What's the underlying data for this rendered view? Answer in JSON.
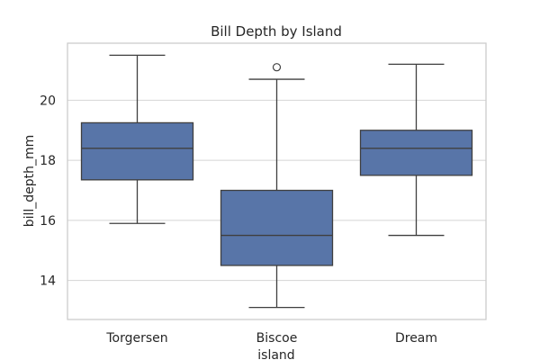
{
  "chart_data": {
    "type": "box",
    "title": "Bill Depth by Island",
    "xlabel": "island",
    "ylabel": "bill_depth_mm",
    "categories": [
      "Torgersen",
      "Biscoe",
      "Dream"
    ],
    "ylim": [
      12.7,
      21.9
    ],
    "yticks": [
      14,
      16,
      18,
      20
    ],
    "grid": true,
    "box_color": "#5875A8",
    "line_color": "#3f3f3f",
    "boxes": [
      {
        "category": "Torgersen",
        "whisker_low": 15.9,
        "q1": 17.35,
        "median": 18.4,
        "q3": 19.25,
        "whisker_high": 21.5,
        "outliers": []
      },
      {
        "category": "Biscoe",
        "whisker_low": 13.1,
        "q1": 14.5,
        "median": 15.5,
        "q3": 17.0,
        "whisker_high": 20.7,
        "outliers": [
          21.1
        ]
      },
      {
        "category": "Dream",
        "whisker_low": 15.5,
        "q1": 17.5,
        "median": 18.4,
        "q3": 19.0,
        "whisker_high": 21.2,
        "outliers": []
      }
    ]
  }
}
